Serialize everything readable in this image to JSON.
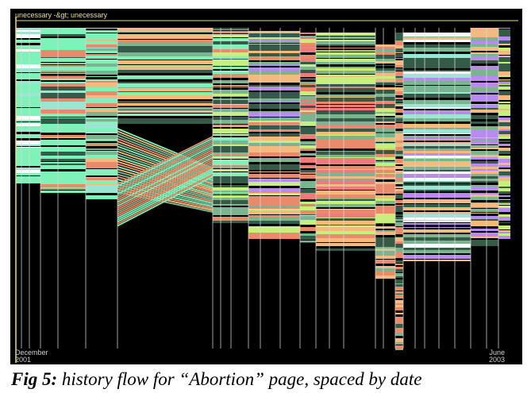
{
  "figure": {
    "top_label": "unecessary -&gt; unecessary",
    "start_month": "December",
    "start_year": "2001",
    "end_month": "June",
    "end_year": "2003",
    "background": "#000000",
    "axis_color": "#e8e07a",
    "rule_color": "#d8d8d8",
    "palette": [
      "#7ef2b8",
      "#e98a6a",
      "#f4b97e",
      "#c7f07a",
      "#ee7b7b",
      "#b98af0",
      "#355a48",
      "#7bb58f",
      "#9be6d3",
      "#ffffff"
    ]
  },
  "caption": {
    "label": "Fig 5:",
    "text": "history flow for “Abortion” page, spaced by date"
  }
}
